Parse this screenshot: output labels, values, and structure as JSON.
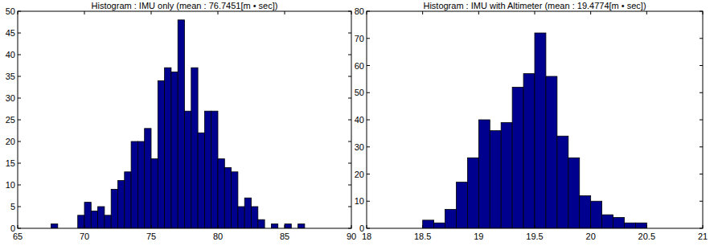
{
  "chart_data": [
    {
      "type": "histogram",
      "title": "Histogram : IMU only (mean : 76.7451[m • sec])",
      "bins": [
        67.5,
        68,
        68.5,
        69,
        69.5,
        70,
        70.5,
        71,
        71.5,
        72,
        72.5,
        73,
        73.5,
        74,
        74.5,
        75,
        75.5,
        76,
        76.5,
        77,
        77.5,
        78,
        78.5,
        79,
        79.5,
        80,
        80.5,
        81,
        81.5,
        82,
        82.5,
        83,
        83.5,
        84,
        84.5,
        85,
        85.5,
        86,
        86.5
      ],
      "values": [
        1,
        0,
        0,
        0,
        3,
        6,
        4,
        5,
        3,
        9,
        11,
        13,
        20,
        20,
        23,
        16,
        34,
        37,
        36,
        48,
        27,
        37,
        22,
        27,
        27,
        16,
        14,
        13,
        5,
        7,
        5,
        2,
        0,
        1,
        0,
        1,
        0,
        1
      ],
      "color": "#00008f",
      "xlim": [
        65,
        90
      ],
      "xticks": [
        65,
        70,
        75,
        80,
        85,
        90
      ],
      "ylim": [
        0,
        50
      ],
      "yticks": [
        0,
        5,
        10,
        15,
        20,
        25,
        30,
        35,
        40,
        45,
        50
      ],
      "grid": false
    },
    {
      "type": "histogram",
      "title": "Histogram : IMU with Altimeter (mean : 19.4774[m • sec])",
      "bins": [
        18.5,
        18.6,
        18.7,
        18.8,
        18.9,
        19,
        19.1,
        19.2,
        19.3,
        19.4,
        19.5,
        19.6,
        19.7,
        19.8,
        19.9,
        20,
        20.1,
        20.2,
        20.3,
        20.4,
        20.5
      ],
      "values": [
        3,
        2,
        7,
        17,
        26,
        40,
        36,
        39,
        52,
        57,
        72,
        56,
        34,
        26,
        12,
        10,
        5,
        4,
        2,
        2
      ],
      "color": "#00008f",
      "xlim": [
        18,
        21
      ],
      "xticks": [
        18,
        18.5,
        19,
        19.5,
        20,
        20.5,
        21
      ],
      "ylim": [
        0,
        80
      ],
      "yticks": [
        0,
        10,
        20,
        30,
        40,
        50,
        60,
        70,
        80
      ],
      "grid": false
    }
  ]
}
